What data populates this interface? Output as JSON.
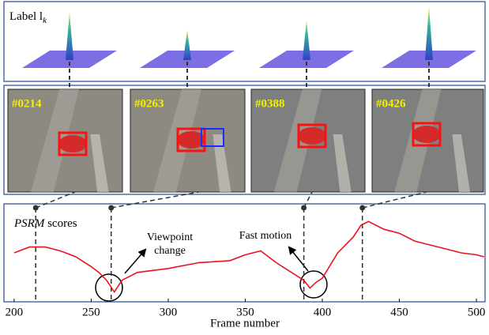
{
  "figure": {
    "top_label": "Label l",
    "top_label_sub": "k",
    "frames": [
      "#0214",
      "#0263",
      "#0388",
      "#0426"
    ],
    "score_label": {
      "metric": "PSRM",
      "text": "scores"
    },
    "annotations": [
      [
        "Viewpoint",
        "change"
      ],
      [
        "Fast motion"
      ]
    ]
  },
  "chart_data": {
    "type": "line",
    "x_label": "Frame number",
    "x": [
      200,
      210,
      220,
      230,
      240,
      250,
      255,
      260,
      265,
      270,
      280,
      290,
      300,
      320,
      340,
      350,
      360,
      370,
      380,
      388,
      392,
      396,
      400,
      410,
      420,
      425,
      430,
      440,
      450,
      460,
      470,
      480,
      490,
      500,
      505
    ],
    "values": [
      5.0,
      5.6,
      5.6,
      5.2,
      4.6,
      3.6,
      3.0,
      2.2,
      1.0,
      2.2,
      3.0,
      3.2,
      3.4,
      4.0,
      4.2,
      4.8,
      5.2,
      4.0,
      3.0,
      2.2,
      1.4,
      2.0,
      2.4,
      5.0,
      6.6,
      7.8,
      8.2,
      7.4,
      7.0,
      6.2,
      5.8,
      5.4,
      5.0,
      4.8,
      4.6
    ],
    "color": "#e8141e",
    "markers": [
      214,
      263,
      388,
      426
    ],
    "xlim": [
      193.4,
      505.6
    ],
    "ylim": [
      0,
      10
    ],
    "xticks": [
      200,
      250,
      300,
      350,
      400,
      450,
      500
    ]
  }
}
